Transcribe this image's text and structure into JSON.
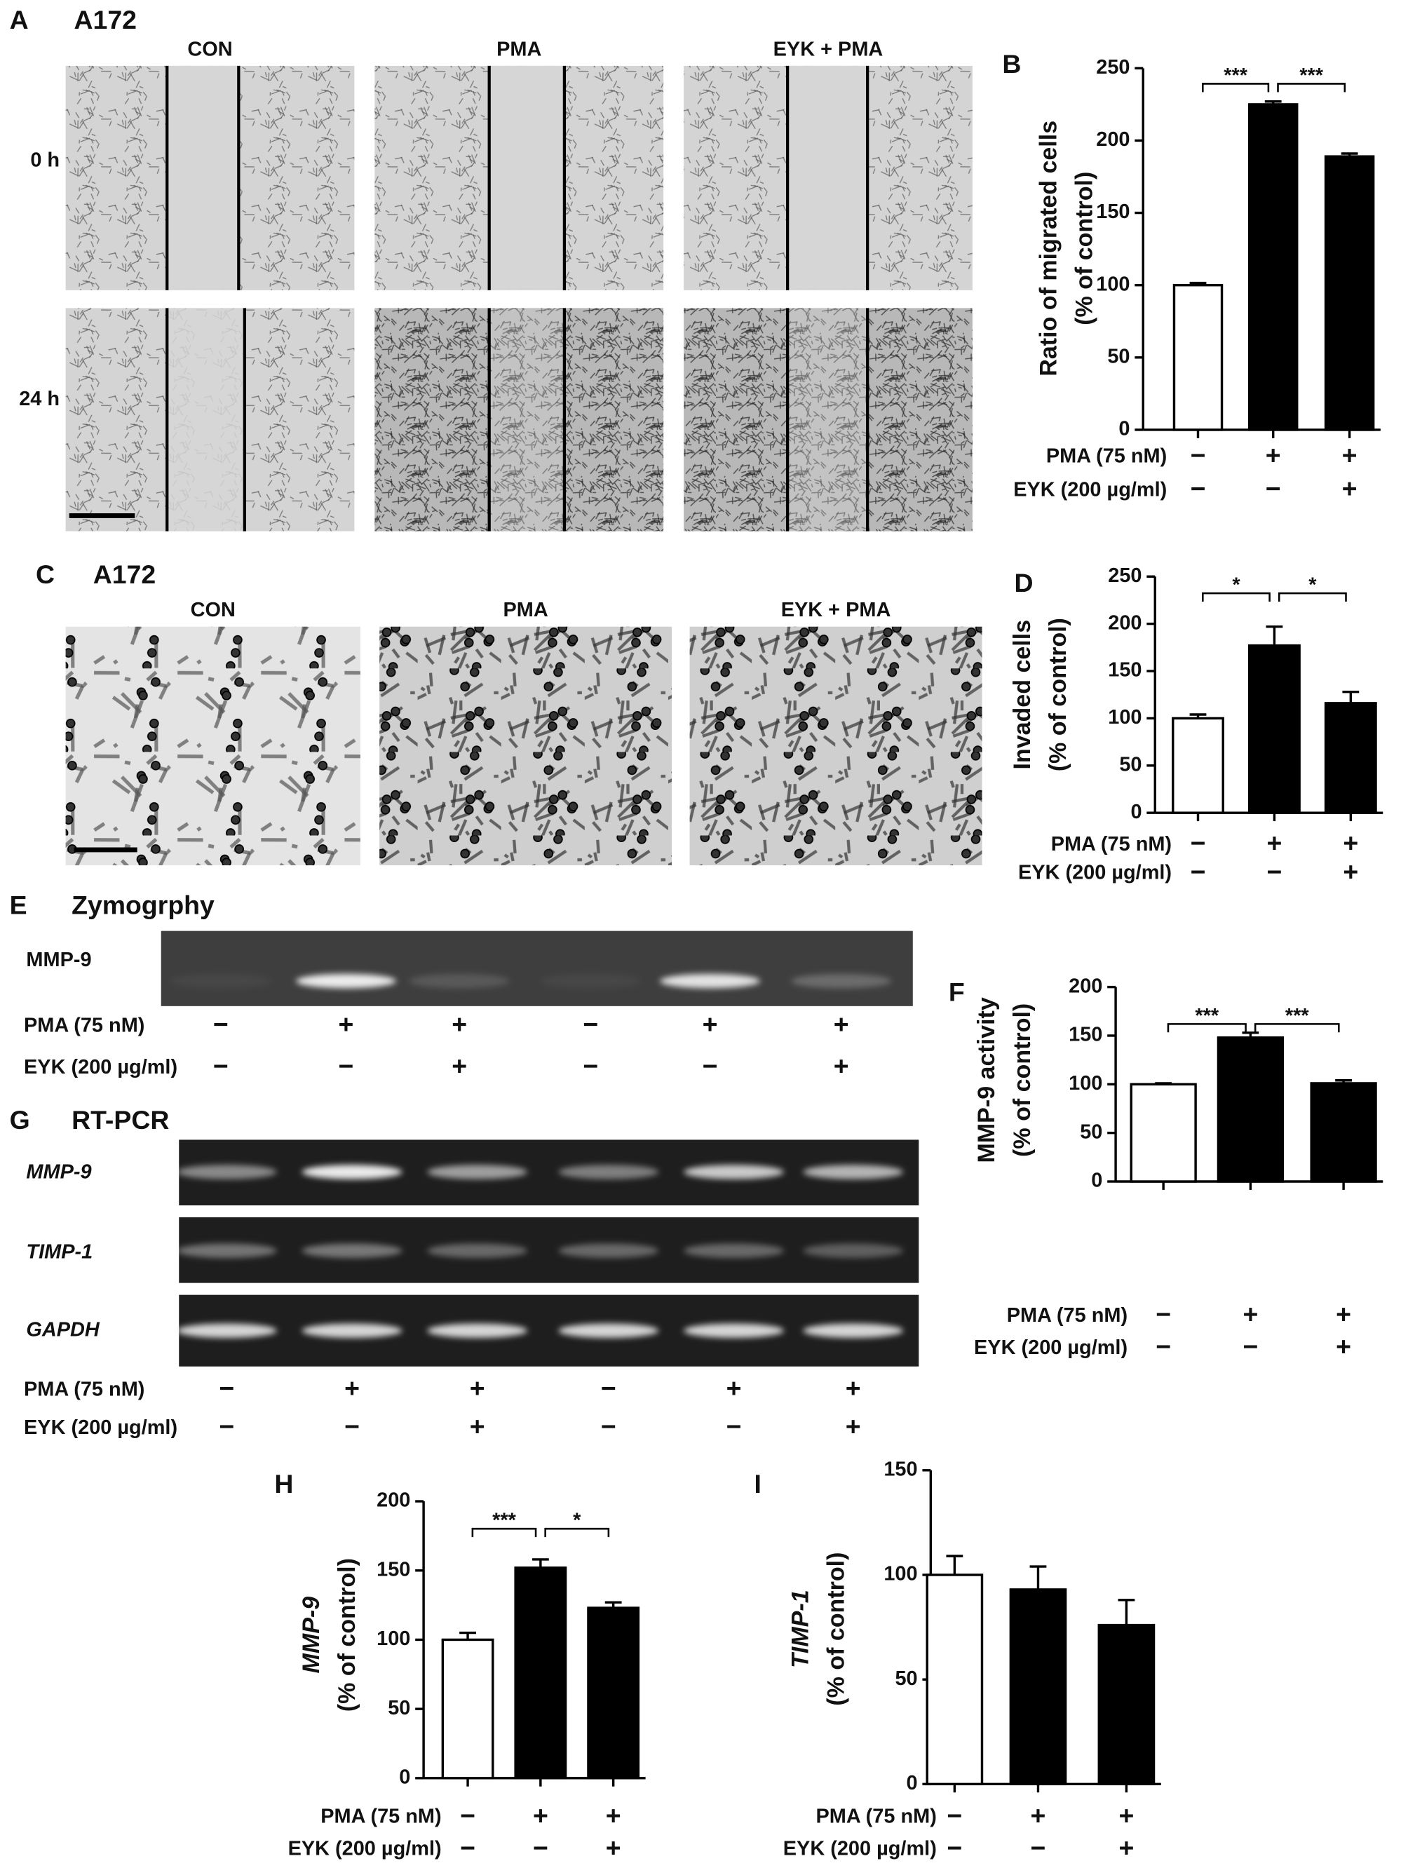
{
  "panels": {
    "panel_a": {
      "letter": "A",
      "cell_line": "A172",
      "columns": [
        "CON",
        "PMA",
        "EYK + PMA"
      ],
      "rows": [
        "0 h",
        "24 h"
      ]
    },
    "panel_c": {
      "letter": "C",
      "cell_line": "A172",
      "columns": [
        "CON",
        "PMA",
        "EYK + PMA"
      ]
    },
    "panel_e": {
      "letter": "E",
      "title": "Zymogrphy",
      "rows": [
        "MMP-9"
      ],
      "conditions": [
        {
          "label": "PMA (75 nM)",
          "signs": [
            "−",
            "+",
            "+",
            "−",
            "+",
            "+"
          ]
        },
        {
          "label": "EYK (200 µg/ml)",
          "signs": [
            "−",
            "−",
            "+",
            "−",
            "−",
            "+"
          ]
        }
      ]
    },
    "panel_g": {
      "letter": "G",
      "title": "RT-PCR",
      "rows": [
        "MMP-9",
        "TIMP-1",
        "GAPDH"
      ],
      "conditions": [
        {
          "label": "PMA (75 nM)",
          "signs": [
            "−",
            "+",
            "+",
            "−",
            "+",
            "+"
          ]
        },
        {
          "label": "EYK (200 µg/ml)",
          "signs": [
            "−",
            "−",
            "+",
            "−",
            "−",
            "+"
          ]
        }
      ]
    }
  },
  "chart_data": [
    {
      "type": "bar",
      "letter": "B",
      "ylabel": [
        "Ratio of migrated cells",
        "(% of control)"
      ],
      "values": [
        100,
        225,
        189
      ],
      "errors": [
        1.5,
        2,
        2
      ],
      "colors": [
        "#ffffff",
        "#000000",
        "#000000"
      ],
      "ylim": [
        0,
        250
      ],
      "yticks": [
        0,
        50,
        100,
        150,
        200,
        250
      ],
      "significance": [
        "***",
        "***"
      ],
      "conditions": [
        {
          "label": "PMA (75 nM)",
          "signs": [
            "−",
            "+",
            "+"
          ]
        },
        {
          "label": "EYK (200 µg/ml)",
          "signs": [
            "−",
            "−",
            "+"
          ]
        }
      ]
    },
    {
      "type": "bar",
      "letter": "D",
      "ylabel": [
        "Invaded cells",
        "(% of control)"
      ],
      "values": [
        100,
        177,
        116
      ],
      "errors": [
        4,
        20,
        12
      ],
      "colors": [
        "#ffffff",
        "#000000",
        "#000000"
      ],
      "ylim": [
        0,
        250
      ],
      "yticks": [
        0,
        50,
        100,
        150,
        200,
        250
      ],
      "significance": [
        "*",
        "*"
      ],
      "conditions": [
        {
          "label": "PMA (75 nM)",
          "signs": [
            "−",
            "+",
            "+"
          ]
        },
        {
          "label": "EYK (200 µg/ml)",
          "signs": [
            "−",
            "−",
            "+"
          ]
        }
      ]
    },
    {
      "type": "bar",
      "letter": "F",
      "ylabel": [
        "MMP-9 activity",
        "(% of control)"
      ],
      "values": [
        100,
        148,
        101
      ],
      "errors": [
        1,
        5,
        3
      ],
      "colors": [
        "#ffffff",
        "#000000",
        "#000000"
      ],
      "ylim": [
        0,
        200
      ],
      "yticks": [
        0,
        50,
        100,
        150,
        200
      ],
      "significance": [
        "***",
        "***"
      ],
      "conditions": [
        {
          "label": "PMA (75 nM)",
          "signs": [
            "−",
            "+",
            "+"
          ]
        },
        {
          "label": "EYK (200 µg/ml)",
          "signs": [
            "−",
            "−",
            "+"
          ]
        }
      ]
    },
    {
      "type": "bar",
      "letter": "H",
      "ylabel": [
        "MMP-9",
        "(% of control)"
      ],
      "values": [
        100,
        152,
        123
      ],
      "errors": [
        5,
        6,
        4
      ],
      "colors": [
        "#ffffff",
        "#000000",
        "#000000"
      ],
      "ylim": [
        0,
        200
      ],
      "yticks": [
        0,
        50,
        100,
        150,
        200
      ],
      "significance": [
        "***",
        "*"
      ],
      "conditions": [
        {
          "label": "PMA (75 nM)",
          "signs": [
            "−",
            "+",
            "+"
          ]
        },
        {
          "label": "EYK (200 µg/ml)",
          "signs": [
            "−",
            "−",
            "+"
          ]
        }
      ]
    },
    {
      "type": "bar",
      "letter": "I",
      "ylabel": [
        "TIMP-1",
        "(% of control)"
      ],
      "values": [
        100,
        93,
        76
      ],
      "errors": [
        9,
        11,
        12
      ],
      "colors": [
        "#ffffff",
        "#000000",
        "#000000"
      ],
      "ylim": [
        0,
        150
      ],
      "yticks": [
        0,
        50,
        100,
        150
      ],
      "conditions": [
        {
          "label": "PMA (75 nM)",
          "signs": [
            "−",
            "+",
            "+"
          ]
        },
        {
          "label": "EYK (200 µg/ml)",
          "signs": [
            "−",
            "−",
            "+"
          ]
        }
      ]
    }
  ]
}
